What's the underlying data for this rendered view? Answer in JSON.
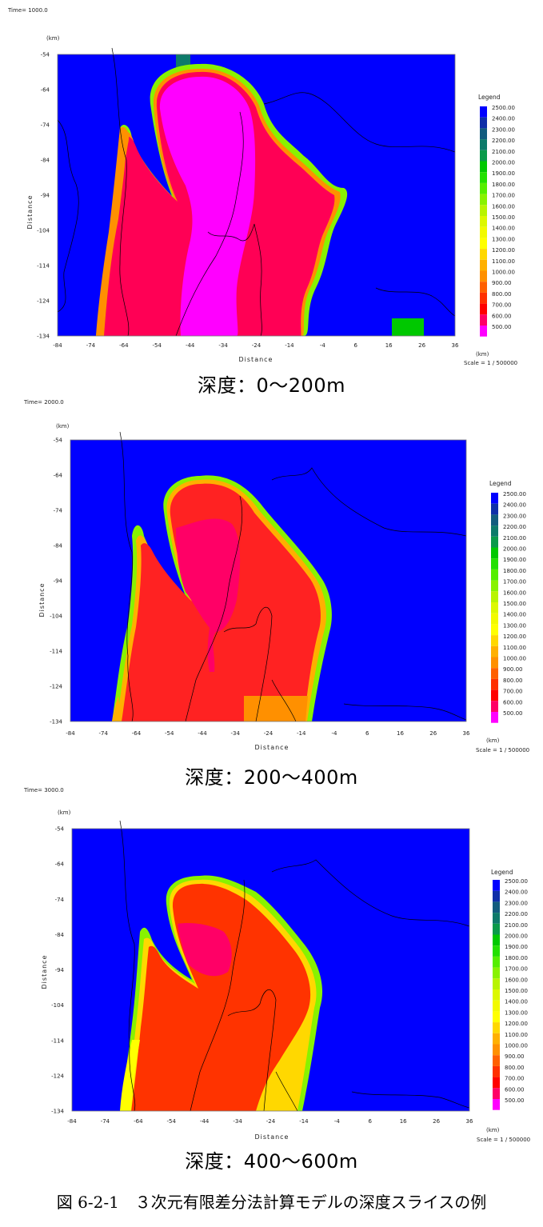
{
  "figure_caption": "図 6-2-1　３次元有限差分法計算モデルの深度スライスの例",
  "colors": {
    "2500": "#0000ff",
    "2400": "#0f2fa8",
    "2300": "#125c7e",
    "2200": "#0d7a6a",
    "2100": "#0a9a4a",
    "2000": "#00c800",
    "1900": "#22e000",
    "1800": "#55ee00",
    "1700": "#88f200",
    "1600": "#b8f400",
    "1500": "#dcf800",
    "1400": "#f2fa00",
    "1300": "#ffff00",
    "1200": "#ffd800",
    "1100": "#ffb000",
    "1000": "#ff9000",
    "900": "#ff6000",
    "800": "#ff3000",
    "700": "#ff0000",
    "600": "#ff0066",
    "500": "#ff00ff"
  },
  "chart_data": [
    {
      "type": "heatmap",
      "time_label": "Time= 1000.0",
      "depth_caption": "深度：0～200m",
      "xlabel": "Distance",
      "ylabel": "Distance",
      "x_unit": "(km)",
      "y_unit": "(km)",
      "scale_label": "Scale = 1 / 500000",
      "xlim": [
        -84,
        36
      ],
      "ylim": [
        -134,
        -54
      ],
      "x_ticks": [
        "-84",
        "-74",
        "-64",
        "-54",
        "-44",
        "-34",
        "-24",
        "-14",
        "-4",
        "6",
        "16",
        "26",
        "36"
      ],
      "y_ticks": [
        "-54",
        "-64",
        "-74",
        "-84",
        "-94",
        "-104",
        "-114",
        "-124",
        "-134"
      ],
      "legend_title": "Legend",
      "legend_values": [
        "2500.00",
        "2400.00",
        "2300.00",
        "2200.00",
        "2100.00",
        "2000.00",
        "1900.00",
        "1800.00",
        "1700.00",
        "1600.00",
        "1500.00",
        "1400.00",
        "1300.00",
        "1200.00",
        "1100.00",
        "1000.00",
        "900.00",
        "800.00",
        "700.00",
        "600.00",
        "500.00"
      ]
    },
    {
      "type": "heatmap",
      "time_label": "Time= 2000.0",
      "depth_caption": "深度：200～400m",
      "xlabel": "Distance",
      "ylabel": "Distance",
      "x_unit": "(km)",
      "y_unit": "(km)",
      "scale_label": "Scale = 1 / 500000",
      "xlim": [
        -84,
        36
      ],
      "ylim": [
        -134,
        -54
      ],
      "x_ticks": [
        "-84",
        "-74",
        "-64",
        "-54",
        "-44",
        "-34",
        "-24",
        "-14",
        "-4",
        "6",
        "16",
        "26",
        "36"
      ],
      "y_ticks": [
        "-54",
        "-64",
        "-74",
        "-84",
        "-94",
        "-104",
        "-114",
        "-124",
        "-134"
      ],
      "legend_title": "Legend",
      "legend_values": [
        "2500.00",
        "2400.00",
        "2300.00",
        "2200.00",
        "2100.00",
        "2000.00",
        "1900.00",
        "1800.00",
        "1700.00",
        "1600.00",
        "1500.00",
        "1400.00",
        "1300.00",
        "1200.00",
        "1100.00",
        "1000.00",
        "900.00",
        "800.00",
        "700.00",
        "600.00",
        "500.00"
      ]
    },
    {
      "type": "heatmap",
      "time_label": "Time= 3000.0",
      "depth_caption": "深度：400～600m",
      "xlabel": "Distance",
      "ylabel": "Distance",
      "x_unit": "(km)",
      "y_unit": "(km)",
      "scale_label": "Scale = 1 / 500000",
      "xlim": [
        -84,
        36
      ],
      "ylim": [
        -134,
        -54
      ],
      "x_ticks": [
        "-84",
        "-74",
        "-64",
        "-54",
        "-44",
        "-34",
        "-24",
        "-14",
        "-4",
        "6",
        "16",
        "26",
        "36"
      ],
      "y_ticks": [
        "-54",
        "-64",
        "-74",
        "-84",
        "-94",
        "-104",
        "-114",
        "-124",
        "-134"
      ],
      "legend_title": "Legend",
      "legend_values": [
        "2500.00",
        "2400.00",
        "2300.00",
        "2200.00",
        "2100.00",
        "2000.00",
        "1900.00",
        "1800.00",
        "1700.00",
        "1600.00",
        "1500.00",
        "1400.00",
        "1300.00",
        "1200.00",
        "1100.00",
        "1000.00",
        "900.00",
        "800.00",
        "700.00",
        "600.00",
        "500.00"
      ]
    }
  ]
}
